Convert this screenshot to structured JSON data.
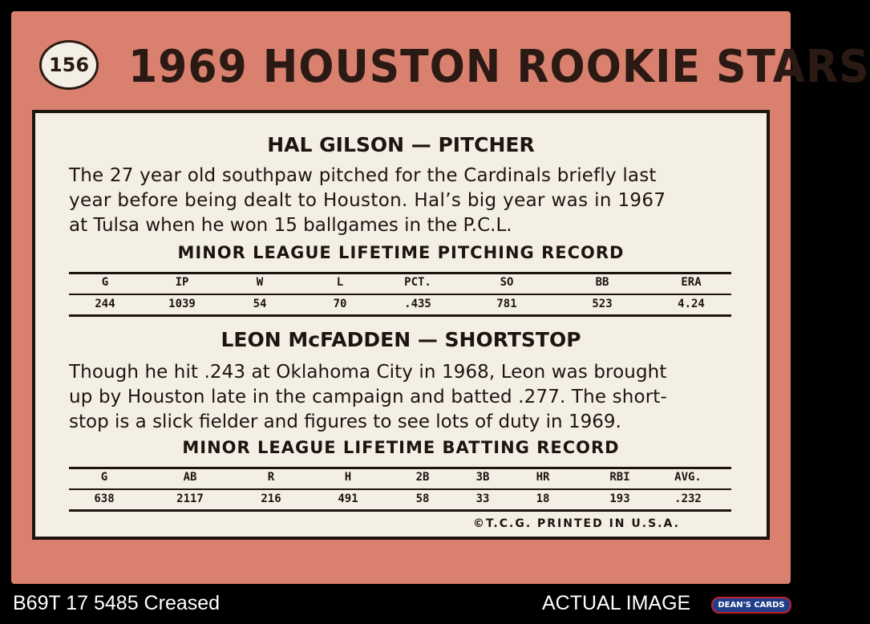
{
  "card": {
    "number": "156",
    "title": "1969 HOUSTON ROOKIE STARS",
    "player1": {
      "heading": "HAL GILSON — PITCHER",
      "bio_lines": [
        "The 27 year old southpaw pitched for the Cardinals briefly last",
        "year before being dealt to Houston. Hal’s big year was in 1967",
        "at Tulsa when he won 15 ballgames in the P.C.L."
      ],
      "record_title": "MINOR LEAGUE LIFETIME PITCHING RECORD",
      "headers": [
        "G",
        "IP",
        "W",
        "L",
        "PCT.",
        "SO",
        "BB",
        "ERA"
      ],
      "values": [
        "244",
        "1039",
        "54",
        "70",
        ".435",
        "781",
        "523",
        "4.24"
      ]
    },
    "player2": {
      "heading": "LEON McFADDEN — SHORTSTOP",
      "bio_lines": [
        "Though he hit .243 at Oklahoma City in 1968, Leon was brought",
        "up by Houston late in the campaign and batted .277. The short-",
        "stop is a slick fielder and figures to see lots of duty in 1969."
      ],
      "record_title": "MINOR LEAGUE LIFETIME BATTING RECORD",
      "headers": [
        "G",
        "AB",
        "R",
        "H",
        "2B",
        "3B",
        "HR",
        "RBI",
        "AVG."
      ],
      "values": [
        "638",
        "2117",
        "216",
        "491",
        "58",
        "33",
        "18",
        "193",
        ".232"
      ]
    },
    "copyright": "©T.C.G. PRINTED IN U.S.A."
  },
  "footer": {
    "left_text": "B69T 17 5485 Creased",
    "right_text": "ACTUAL IMAGE",
    "logo_text": "DEAN'S CARDS"
  },
  "colors": {
    "card_border": "#d9806e",
    "panel": "#f3efe4",
    "ink": "#1d1410"
  }
}
